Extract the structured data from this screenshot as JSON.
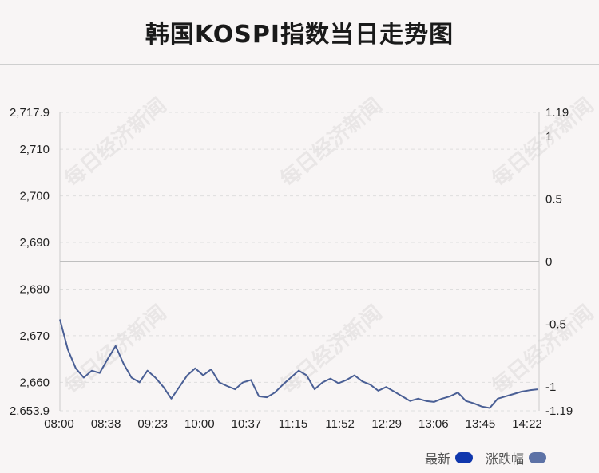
{
  "title": "韩国KOSPI指数当日走势图",
  "watermark": "每日经济新闻",
  "chart_data": {
    "type": "line",
    "x_ticks": [
      "08:00",
      "08:38",
      "09:23",
      "10:00",
      "10:37",
      "11:15",
      "11:52",
      "12:29",
      "13:06",
      "13:45",
      "14:22"
    ],
    "y_left_ticks": [
      "2,717.9",
      "2,710",
      "2,700",
      "2,690",
      "2,680",
      "2,670",
      "2,660",
      "2,653.9"
    ],
    "y_right_ticks": [
      "1.19",
      "1",
      "0.5",
      "0",
      "-0.5",
      "-1",
      "-1.19"
    ],
    "y_left_range": [
      2653.9,
      2717.9
    ],
    "y_right_range": [
      -1.19,
      1.19
    ],
    "reference_value": 2685.9,
    "grid": true,
    "series": [
      {
        "name": "最新",
        "color": "#1d3fb0",
        "x": [
          0,
          1,
          2,
          3,
          4,
          5,
          6,
          7,
          8,
          9,
          10,
          11,
          12,
          13,
          14,
          15,
          16,
          17,
          18,
          19,
          20,
          21,
          22,
          23,
          24,
          25,
          26,
          27,
          28,
          29,
          30,
          31,
          32,
          33,
          34,
          35,
          36,
          37,
          38,
          39,
          40,
          41,
          42,
          43,
          44,
          45,
          46,
          47,
          48,
          49,
          50,
          51,
          52,
          53,
          54,
          55,
          56,
          57,
          58,
          59,
          60
        ],
        "values": [
          2673.5,
          2667.0,
          2663.0,
          2661.0,
          2662.5,
          2662.0,
          2665.0,
          2667.8,
          2664.0,
          2661.0,
          2660.0,
          2662.5,
          2661.0,
          2659.0,
          2656.5,
          2659.0,
          2661.5,
          2663.0,
          2661.5,
          2662.8,
          2660.0,
          2659.2,
          2658.5,
          2660.0,
          2660.5,
          2657.0,
          2656.8,
          2657.8,
          2659.5,
          2661.0,
          2662.5,
          2661.5,
          2658.5,
          2660.0,
          2660.8,
          2659.8,
          2660.5,
          2661.5,
          2660.2,
          2659.5,
          2658.2,
          2659.0,
          2658.0,
          2657.0,
          2656.0,
          2656.5,
          2656.0,
          2655.8,
          2656.5,
          2657.0,
          2657.8,
          2656.0,
          2655.5,
          2654.8,
          2654.5,
          2656.5,
          2657.0,
          2657.5,
          2658.0,
          2658.3,
          2658.5
        ]
      },
      {
        "name": "涨跌幅",
        "color": "#5b6fa5"
      }
    ]
  },
  "legend": {
    "latest_label": "最新",
    "latest_color": "#1037ad",
    "change_label": "涨跌幅",
    "change_color": "#5d72a6"
  }
}
